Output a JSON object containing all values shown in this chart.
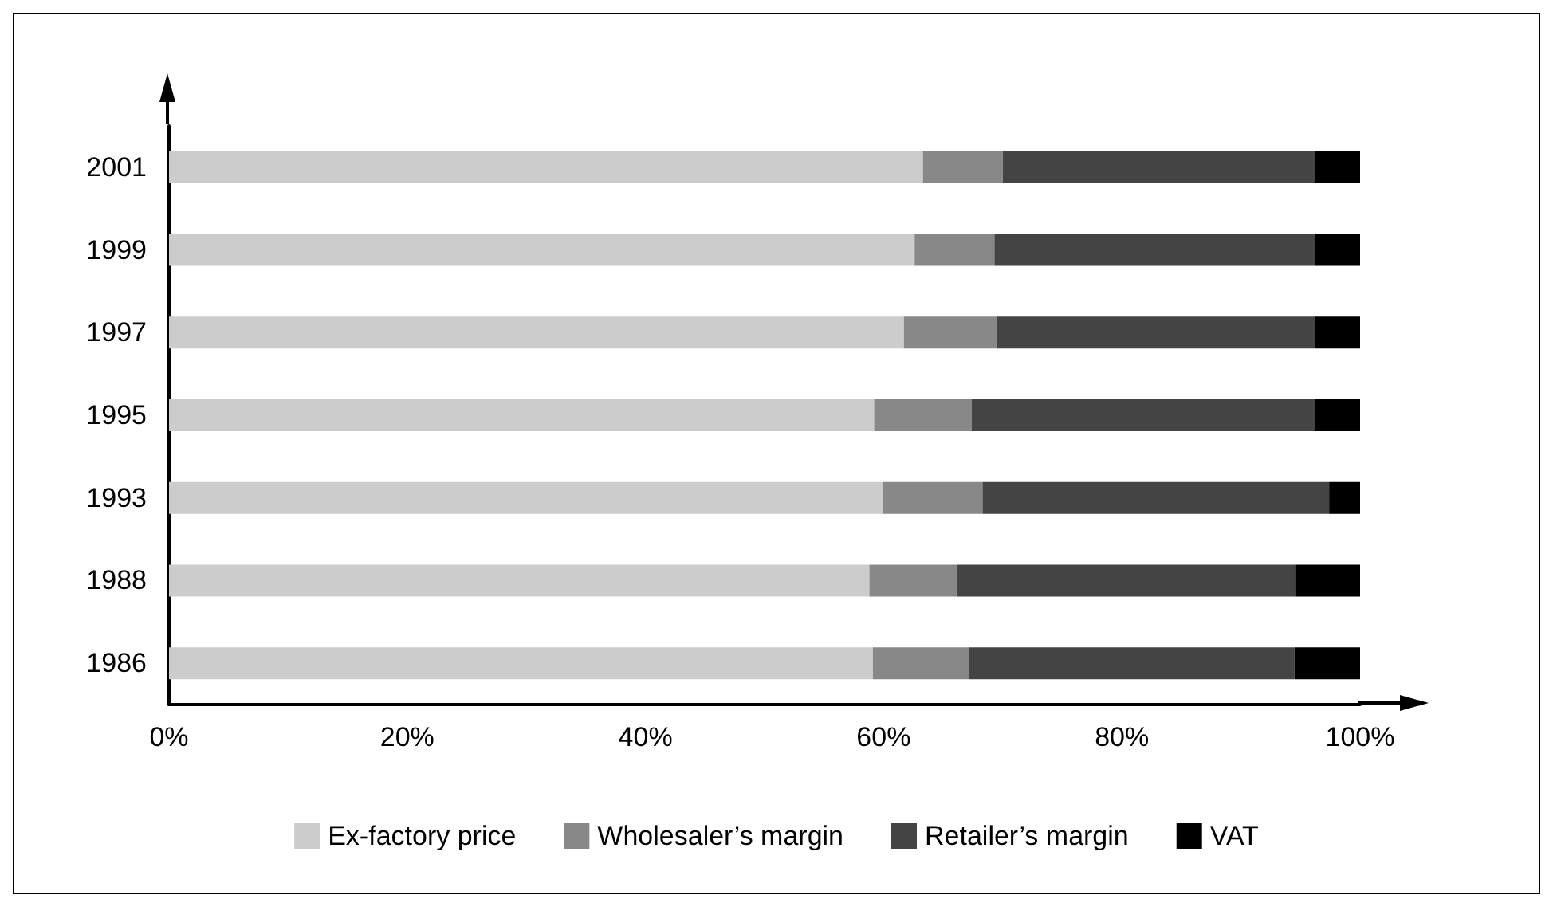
{
  "chart_data": {
    "type": "bar",
    "orientation": "horizontal",
    "stacked": true,
    "categories": [
      "2001",
      "1999",
      "1997",
      "1995",
      "1993",
      "1988",
      "1986"
    ],
    "series": [
      {
        "name": "Ex-factory price",
        "color": "#cccccc",
        "values": [
          63.3,
          62.6,
          61.7,
          59.2,
          59.9,
          58.8,
          59.1
        ]
      },
      {
        "name": "Wholesaler’s margin",
        "color": "#888888",
        "values": [
          6.7,
          6.7,
          7.8,
          8.2,
          8.4,
          7.4,
          8.1
        ]
      },
      {
        "name": "Retailer’s margin",
        "color": "#444444",
        "values": [
          26.2,
          26.9,
          26.7,
          28.8,
          29.1,
          28.4,
          27.3
        ]
      },
      {
        "name": "VAT",
        "color": "#000000",
        "values": [
          3.8,
          3.8,
          3.8,
          3.8,
          2.6,
          5.4,
          5.5
        ]
      }
    ],
    "xlim": [
      0,
      100
    ],
    "xticks": [
      {
        "value": 0,
        "label": "0%"
      },
      {
        "value": 20,
        "label": "20%"
      },
      {
        "value": 40,
        "label": "40%"
      },
      {
        "value": 60,
        "label": "60%"
      },
      {
        "value": 80,
        "label": "80%"
      },
      {
        "value": 100,
        "label": "100%"
      }
    ],
    "grid": false,
    "legend": "bottom"
  }
}
